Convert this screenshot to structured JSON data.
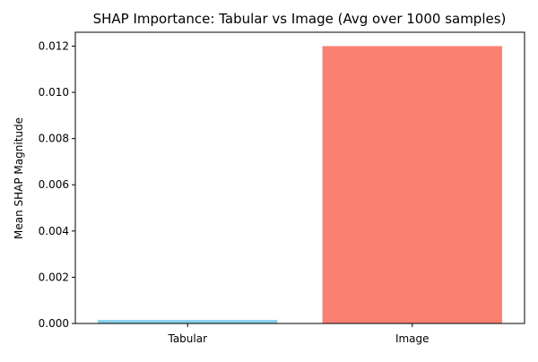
{
  "chart_data": {
    "type": "bar",
    "title": "SHAP Importance: Tabular vs Image (Avg over 1000 samples)",
    "xlabel": "",
    "ylabel": "Mean SHAP Magnitude",
    "categories": [
      "Tabular",
      "Image"
    ],
    "values": [
      0.00015,
      0.012
    ],
    "colors": [
      "#87ceeb",
      "#fa8072"
    ],
    "ylim": [
      0,
      0.0126
    ],
    "yticks": [
      0.0,
      0.002,
      0.004,
      0.006,
      0.008,
      0.01,
      0.012
    ],
    "ytick_labels": [
      "0.000",
      "0.002",
      "0.004",
      "0.006",
      "0.008",
      "0.010",
      "0.012"
    ],
    "grid": false,
    "legend": "none"
  }
}
